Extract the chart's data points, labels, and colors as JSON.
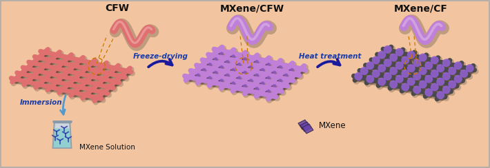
{
  "bg_color": "#F2C5A0",
  "title_cfw": "CFW",
  "title_mxene_cfw": "MXene/CFW",
  "title_mxene_cf": "MXene/CF",
  "label_immersion": "Immersion",
  "label_freeze": "Freeze-drying",
  "label_heat": "Heat treatment",
  "label_mxene_sol": "MXene Solution",
  "label_mxene": "MXene",
  "color_cfw": "#E07070",
  "color_cfw_shadow": "#C05050",
  "color_mxene_cfw": "#C080D8",
  "color_mxene_cfw_shadow": "#9060B0",
  "color_mxene_particle": "#8855BB",
  "color_mxene_cf_fiber": "#4A4A4A",
  "color_mxene_cf_shadow": "#2A2A2A",
  "color_mxene_cf_mxene": "#9060CC",
  "color_arrow_process": "#1A1A9C",
  "color_circle": "#CC7700",
  "color_label_blue": "#1A3CAA",
  "color_label_black": "#111111",
  "color_beaker_body": "#C8D8E0",
  "color_beaker_liquid": "#80C8C8",
  "color_mxene_sol_particle": "#3344AA",
  "figsize": [
    7.1,
    2.44
  ],
  "dpi": 100
}
